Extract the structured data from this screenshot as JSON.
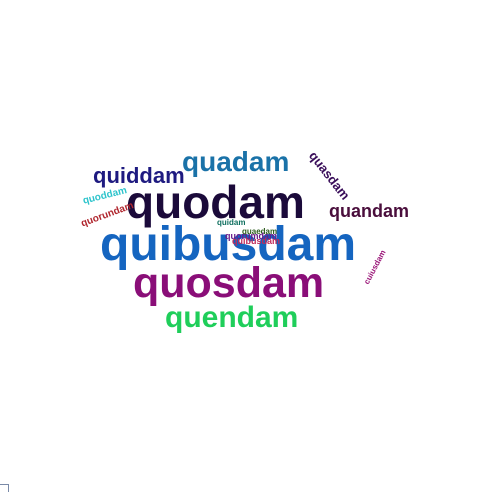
{
  "words": [
    {
      "text": "quibusdam",
      "color": "#1565c0"
    },
    {
      "text": "quodam",
      "color": "#1b0a3a"
    },
    {
      "text": "quosdam",
      "color": "#8a0e78"
    },
    {
      "text": "quendam",
      "color": "#1fce5a"
    },
    {
      "text": "quadam",
      "color": "#1a72a8"
    },
    {
      "text": "quiddam",
      "color": "#1e1a80"
    },
    {
      "text": "quandam",
      "color": "#4a0e3c"
    },
    {
      "text": "quasdam",
      "color": "#3a0e5a"
    },
    {
      "text": "quoddam",
      "color": "#2ec4cc"
    },
    {
      "text": "quorundam",
      "color": "#b0262e"
    },
    {
      "text": "cuiusdam",
      "color": "#9a1678"
    },
    {
      "text": "quidam",
      "color": "#0d6e5e"
    },
    {
      "text": "quaedam",
      "color": "#2a5a1a"
    },
    {
      "text": "quorumdam",
      "color": "#6a1a8a"
    },
    {
      "text": "quibusdam",
      "color": "#c02a5a"
    }
  ]
}
